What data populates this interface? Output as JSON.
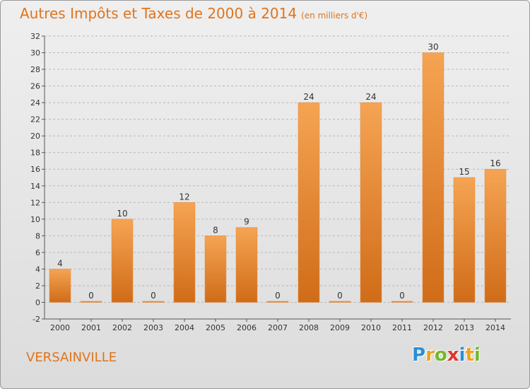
{
  "title": "Autres Impôts et Taxes de 2000 à 2014",
  "unit_note": "(en milliers d'€)",
  "commune": "VERSAINVILLE",
  "logo": {
    "letters": [
      "P",
      "r",
      "o",
      "x",
      "i",
      "t",
      "i"
    ],
    "colors": [
      "#2b8fd6",
      "#f0a21a",
      "#74b82e",
      "#e0362a",
      "#2b8fd6",
      "#f0a21a",
      "#74b82e"
    ]
  },
  "colors": {
    "bar_top": "#f5a453",
    "bar_bottom": "#d06c18",
    "title": "#e0741c"
  },
  "chart_data": {
    "type": "bar",
    "categories": [
      "2000",
      "2001",
      "2002",
      "2003",
      "2004",
      "2005",
      "2006",
      "2007",
      "2008",
      "2009",
      "2010",
      "2011",
      "2012",
      "2013",
      "2014"
    ],
    "values": [
      4,
      0,
      10,
      0,
      12,
      8,
      9,
      0,
      24,
      0,
      24,
      0,
      30,
      15,
      16
    ],
    "value_labels": [
      "4",
      "0",
      "10",
      "0",
      "12",
      "8",
      "9",
      "0",
      "24",
      "0",
      "24",
      "0",
      "30",
      "15",
      "16"
    ],
    "ylim": [
      -2,
      32
    ],
    "yticks": [
      "-2",
      "0",
      "2",
      "4",
      "6",
      "8",
      "10",
      "12",
      "14",
      "16",
      "18",
      "20",
      "22",
      "24",
      "26",
      "28",
      "30",
      "32"
    ],
    "grid": "dashed horizontal",
    "title": "Autres Impôts et Taxes de 2000 à 2014",
    "xlabel": "",
    "ylabel": ""
  }
}
